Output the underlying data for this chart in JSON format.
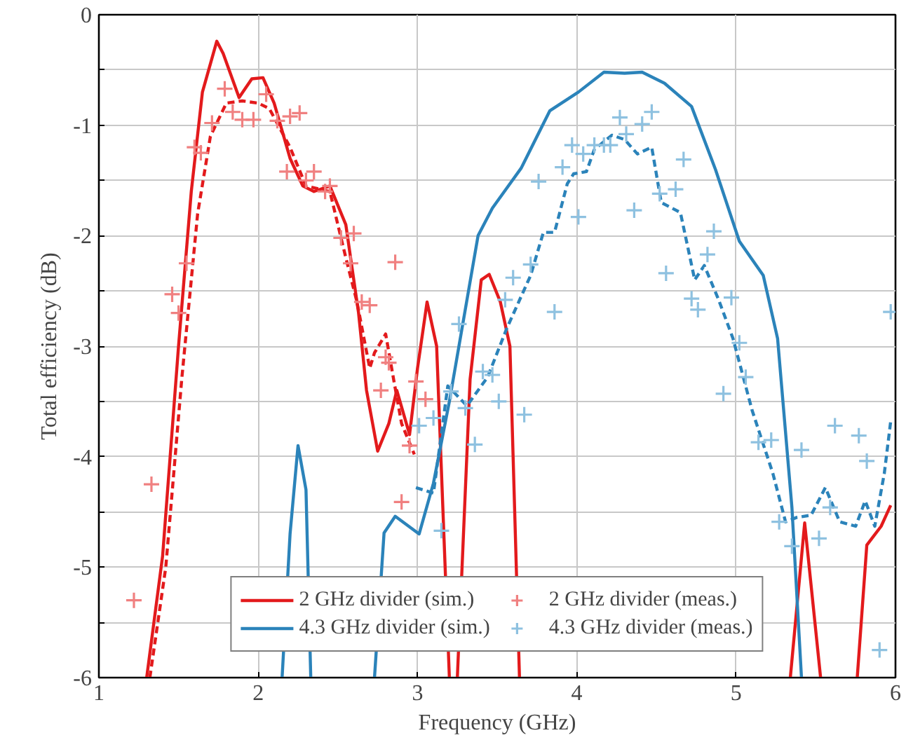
{
  "chart_data": {
    "type": "line",
    "xlabel": "Frequency (GHz)",
    "ylabel": "Total efficiency (dB)",
    "xlim": [
      1,
      6
    ],
    "ylim": [
      -6,
      0
    ],
    "xticks": [
      1,
      2,
      3,
      4,
      5,
      6
    ],
    "yticks": [
      -6,
      {
        "value": -5.5,
        "label": null
      },
      -5,
      {
        "value": -4.5,
        "label": null
      },
      -4,
      {
        "value": -3.5,
        "label": null
      },
      -3,
      {
        "value": -2.5,
        "label": null
      },
      -2,
      {
        "value": -1.5,
        "label": null
      },
      -1,
      {
        "value": -0.5,
        "label": null
      },
      0
    ],
    "grid": true,
    "legend": "bottom",
    "series": [
      {
        "name": "2 GHz divider (sim.)",
        "color": "#e31a1c",
        "line_style": "solid",
        "x": [
          1.3,
          1.4,
          1.5,
          1.58,
          1.65,
          1.74,
          1.78,
          1.88,
          1.96,
          2.03,
          2.1,
          2.2,
          2.28,
          2.35,
          2.45,
          2.55,
          2.63,
          2.68,
          2.75,
          2.82,
          2.87,
          2.95,
          3.0,
          3.06,
          3.12,
          3.2,
          3.22,
          3.25,
          3.33,
          3.4,
          3.45,
          3.52,
          3.58,
          3.64,
          4.5,
          4.9,
          4.97,
          5.04,
          5.2,
          5.34,
          5.43,
          5.53,
          5.65,
          5.76,
          5.82,
          5.91,
          5.97
        ],
        "values": [
          -6,
          -4.9,
          -3.0,
          -1.6,
          -0.7,
          -0.24,
          -0.35,
          -0.75,
          -0.58,
          -0.57,
          -0.8,
          -1.3,
          -1.55,
          -1.6,
          -1.55,
          -1.9,
          -2.7,
          -3.4,
          -3.95,
          -3.7,
          -3.4,
          -3.8,
          -3.2,
          -2.6,
          -3.0,
          -6,
          null,
          -6,
          -3.3,
          -2.4,
          -2.35,
          -2.6,
          -3.0,
          -6,
          null,
          null,
          null,
          null,
          null,
          -6,
          -4.6,
          -6,
          null,
          -6,
          -4.8,
          -4.63,
          -4.44
        ]
      },
      {
        "color": "#e31a1c",
        "line_style": "dashed",
        "x": [
          1.32,
          1.42,
          1.52,
          1.62,
          1.7,
          1.8,
          1.9,
          2.0,
          2.07,
          2.2,
          2.3,
          2.45,
          2.55,
          2.62,
          2.7,
          2.73,
          2.8,
          2.85,
          2.9,
          2.98
        ],
        "values": [
          -6,
          -5.0,
          -3.3,
          -1.8,
          -1.1,
          -0.8,
          -0.78,
          -0.8,
          -0.85,
          -1.2,
          -1.55,
          -1.6,
          -2.2,
          -2.6,
          -3.2,
          -3.06,
          -2.89,
          -3.3,
          -3.7,
          -3.98
        ]
      },
      {
        "name": "2 GHz divider (meas.)",
        "color": "#f08080",
        "type": "scatter",
        "marker": "cross",
        "x": [
          1.22,
          1.33,
          1.46,
          1.5,
          1.55,
          1.6,
          1.64,
          1.71,
          1.79,
          1.84,
          1.9,
          1.97,
          2.05,
          2.12,
          2.18,
          2.2,
          2.26,
          2.3,
          2.35,
          2.42,
          2.45,
          2.52,
          2.58,
          2.6,
          2.65,
          2.7,
          2.77,
          2.8,
          2.82,
          2.86,
          2.9,
          2.95,
          2.99,
          3.05
        ],
        "values": [
          -5.3,
          -4.25,
          -2.53,
          -2.7,
          -2.25,
          -1.2,
          -1.25,
          -0.98,
          -0.67,
          -0.88,
          -0.95,
          -0.95,
          -0.72,
          -0.96,
          -1.42,
          -0.92,
          -0.89,
          -1.5,
          -1.42,
          -1.6,
          -1.55,
          -2.02,
          -2.25,
          -1.98,
          -2.6,
          -2.63,
          -3.4,
          -3.1,
          -3.15,
          -2.24,
          -4.41,
          -3.9,
          -3.32,
          -3.48
        ]
      },
      {
        "name": "4.3 GHz divider (sim.)",
        "color": "#2b83ba",
        "line_style": "solid",
        "x": [
          2.15,
          2.2,
          2.25,
          2.3,
          2.33,
          2.4,
          2.47,
          2.52,
          2.57,
          2.65,
          2.73,
          2.79,
          2.86,
          3.01,
          3.1,
          3.2,
          3.29,
          3.38,
          3.47,
          3.65,
          3.83,
          4.01,
          4.17,
          4.3,
          4.41,
          4.55,
          4.72,
          4.87,
          5.02,
          5.17,
          5.26,
          5.35,
          5.41
        ],
        "values": [
          -6,
          -4.7,
          -3.9,
          -4.3,
          -6,
          null,
          null,
          null,
          null,
          null,
          -6,
          -4.69,
          -4.54,
          -4.7,
          -4.24,
          -3.5,
          -2.75,
          -2.0,
          -1.75,
          -1.39,
          -0.87,
          -0.7,
          -0.52,
          -0.53,
          -0.52,
          -0.62,
          -0.83,
          -1.4,
          -2.05,
          -2.36,
          -2.93,
          -4.46,
          -6
        ]
      },
      {
        "color": "#2b83ba",
        "line_style": "dashed",
        "x": [
          2.99,
          3.1,
          3.19,
          3.31,
          3.44,
          3.56,
          3.71,
          3.79,
          3.86,
          3.94,
          3.98,
          4.06,
          4.11,
          4.22,
          4.3,
          4.38,
          4.47,
          4.53,
          4.65,
          4.74,
          4.8,
          4.89,
          4.98,
          5.1,
          5.23,
          5.31,
          5.38,
          5.47,
          5.56,
          5.65,
          5.75,
          5.81,
          5.87,
          5.93,
          5.97
        ],
        "values": [
          -4.28,
          -4.33,
          -3.36,
          -3.54,
          -3.28,
          -2.84,
          -2.36,
          -1.97,
          -1.97,
          -1.53,
          -1.44,
          -1.42,
          -1.22,
          -1.09,
          -1.13,
          -1.26,
          -1.2,
          -1.7,
          -1.79,
          -2.4,
          -2.27,
          -2.58,
          -2.93,
          -3.58,
          -4.15,
          -4.59,
          -4.55,
          -4.53,
          -4.28,
          -4.59,
          -4.63,
          -4.4,
          -4.63,
          -4.15,
          -3.68
        ]
      },
      {
        "name": "4.3 GHz divider (meas.)",
        "color": "#8ec1e0",
        "type": "scatter",
        "marker": "cross",
        "x": [
          3.01,
          3.1,
          3.15,
          3.21,
          3.26,
          3.3,
          3.36,
          3.41,
          3.47,
          3.51,
          3.55,
          3.6,
          3.67,
          3.71,
          3.76,
          3.86,
          3.91,
          3.97,
          4.01,
          4.04,
          4.11,
          4.17,
          4.21,
          4.27,
          4.31,
          4.36,
          4.41,
          4.47,
          4.52,
          4.56,
          4.62,
          4.67,
          4.72,
          4.76,
          4.82,
          4.86,
          4.92,
          4.97,
          5.02,
          5.06,
          5.14,
          5.22,
          5.27,
          5.35,
          5.41,
          5.52,
          5.59,
          5.62,
          5.77,
          5.82,
          5.9,
          5.97
        ],
        "values": [
          -3.72,
          -3.65,
          -4.67,
          -3.41,
          -2.8,
          -3.56,
          -3.89,
          -3.23,
          -3.26,
          -3.5,
          -2.58,
          -2.38,
          -3.62,
          -2.26,
          -1.51,
          -2.69,
          -1.38,
          -1.18,
          -1.83,
          -1.26,
          -1.18,
          -1.18,
          -1.18,
          -0.93,
          -1.08,
          -1.77,
          -0.99,
          -0.88,
          -1.62,
          -2.34,
          -1.58,
          -1.31,
          -2.57,
          -2.67,
          -2.17,
          -1.96,
          -3.43,
          -2.56,
          -2.97,
          -3.28,
          -3.87,
          -3.85,
          -4.59,
          -4.81,
          -3.94,
          -4.74,
          -4.46,
          -3.72,
          -3.81,
          -4.04,
          -5.75,
          -2.69
        ]
      }
    ]
  }
}
